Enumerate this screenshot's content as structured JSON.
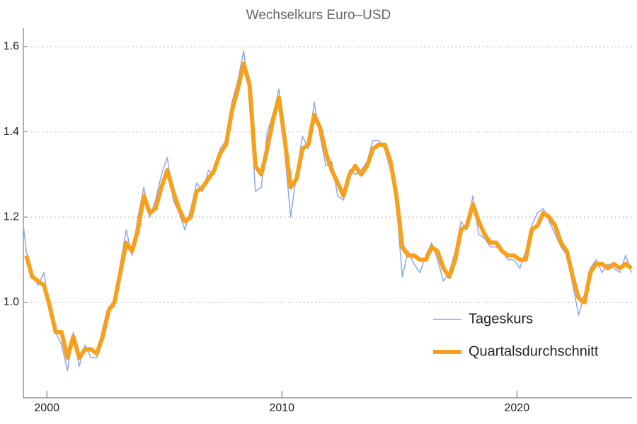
{
  "chart_data": {
    "type": "line",
    "title": "Wechselkurs Euro–USD",
    "xlim": [
      1999.0,
      2024.9
    ],
    "xticks": [
      2000,
      2010,
      2020
    ],
    "ylim": [
      0.776,
      1.643
    ],
    "yticks": [
      {
        "value": 1,
        "label": "1.0"
      },
      1.2,
      1.4,
      1.6
    ],
    "grid": true,
    "legend": "lower right",
    "series": [
      {
        "name": "Tageskurs",
        "color": "#8ea6ea",
        "x": [
          1999.0,
          1999.125,
          1999.375,
          1999.625,
          1999.875,
          2000.125,
          2000.375,
          2000.625,
          2000.875,
          2001.125,
          2001.375,
          2001.625,
          2001.875,
          2002.125,
          2002.375,
          2002.625,
          2002.875,
          2003.125,
          2003.375,
          2003.625,
          2003.875,
          2004.125,
          2004.375,
          2004.625,
          2004.875,
          2005.125,
          2005.375,
          2005.625,
          2005.875,
          2006.125,
          2006.375,
          2006.625,
          2006.875,
          2007.125,
          2007.375,
          2007.625,
          2007.875,
          2008.125,
          2008.375,
          2008.625,
          2008.875,
          2009.125,
          2009.375,
          2009.625,
          2009.875,
          2010.125,
          2010.375,
          2010.625,
          2010.875,
          2011.125,
          2011.375,
          2011.625,
          2011.875,
          2012.125,
          2012.375,
          2012.625,
          2012.875,
          2013.125,
          2013.375,
          2013.625,
          2013.875,
          2014.125,
          2014.375,
          2014.625,
          2014.875,
          2015.125,
          2015.375,
          2015.625,
          2015.875,
          2016.125,
          2016.375,
          2016.625,
          2016.875,
          2017.125,
          2017.375,
          2017.625,
          2017.875,
          2018.125,
          2018.375,
          2018.625,
          2018.875,
          2019.125,
          2019.375,
          2019.625,
          2019.875,
          2020.125,
          2020.375,
          2020.625,
          2020.875,
          2021.125,
          2021.375,
          2021.625,
          2021.875,
          2022.125,
          2022.375,
          2022.625,
          2022.875,
          2023.125,
          2023.375,
          2023.625,
          2023.875,
          2024.125,
          2024.375,
          2024.625,
          2024.875
        ],
        "values": [
          1.18,
          1.12,
          1.07,
          1.04,
          1.07,
          0.97,
          0.93,
          0.9,
          0.84,
          0.93,
          0.85,
          0.9,
          0.87,
          0.87,
          0.94,
          0.99,
          0.99,
          1.09,
          1.17,
          1.11,
          1.2,
          1.27,
          1.2,
          1.24,
          1.3,
          1.34,
          1.24,
          1.21,
          1.17,
          1.22,
          1.28,
          1.26,
          1.31,
          1.3,
          1.36,
          1.38,
          1.47,
          1.52,
          1.59,
          1.48,
          1.26,
          1.27,
          1.4,
          1.44,
          1.5,
          1.35,
          1.2,
          1.3,
          1.39,
          1.36,
          1.47,
          1.39,
          1.32,
          1.33,
          1.25,
          1.24,
          1.31,
          1.3,
          1.31,
          1.33,
          1.38,
          1.38,
          1.36,
          1.31,
          1.23,
          1.06,
          1.12,
          1.09,
          1.07,
          1.11,
          1.14,
          1.1,
          1.05,
          1.07,
          1.12,
          1.19,
          1.17,
          1.25,
          1.16,
          1.15,
          1.13,
          1.13,
          1.12,
          1.1,
          1.1,
          1.08,
          1.12,
          1.18,
          1.21,
          1.22,
          1.19,
          1.16,
          1.13,
          1.11,
          1.04,
          0.97,
          1.02,
          1.08,
          1.1,
          1.07,
          1.09,
          1.08,
          1.07,
          1.11,
          1.07
        ]
      },
      {
        "name": "Quartalsdurchschnitt",
        "color": "#f7a01e",
        "x": [
          1999.125,
          1999.375,
          1999.625,
          1999.875,
          2000.125,
          2000.375,
          2000.625,
          2000.875,
          2001.125,
          2001.375,
          2001.625,
          2001.875,
          2002.125,
          2002.375,
          2002.625,
          2002.875,
          2003.125,
          2003.375,
          2003.625,
          2003.875,
          2004.125,
          2004.375,
          2004.625,
          2004.875,
          2005.125,
          2005.375,
          2005.625,
          2005.875,
          2006.125,
          2006.375,
          2006.625,
          2006.875,
          2007.125,
          2007.375,
          2007.625,
          2007.875,
          2008.125,
          2008.375,
          2008.625,
          2008.875,
          2009.125,
          2009.375,
          2009.625,
          2009.875,
          2010.125,
          2010.375,
          2010.625,
          2010.875,
          2011.125,
          2011.375,
          2011.625,
          2011.875,
          2012.125,
          2012.375,
          2012.625,
          2012.875,
          2013.125,
          2013.375,
          2013.625,
          2013.875,
          2014.125,
          2014.375,
          2014.625,
          2014.875,
          2015.125,
          2015.375,
          2015.625,
          2015.875,
          2016.125,
          2016.375,
          2016.625,
          2016.875,
          2017.125,
          2017.375,
          2017.625,
          2017.875,
          2018.125,
          2018.375,
          2018.625,
          2018.875,
          2019.125,
          2019.375,
          2019.625,
          2019.875,
          2020.125,
          2020.375,
          2020.625,
          2020.875,
          2021.125,
          2021.375,
          2021.625,
          2021.875,
          2022.125,
          2022.375,
          2022.625,
          2022.875,
          2023.125,
          2023.375,
          2023.625,
          2023.875,
          2024.125,
          2024.375,
          2024.625,
          2024.875
        ],
        "values": [
          1.11,
          1.06,
          1.05,
          1.04,
          0.99,
          0.93,
          0.93,
          0.87,
          0.92,
          0.87,
          0.89,
          0.89,
          0.88,
          0.92,
          0.98,
          1.0,
          1.07,
          1.14,
          1.12,
          1.17,
          1.25,
          1.21,
          1.22,
          1.27,
          1.31,
          1.26,
          1.22,
          1.19,
          1.2,
          1.26,
          1.27,
          1.29,
          1.31,
          1.35,
          1.37,
          1.45,
          1.5,
          1.56,
          1.51,
          1.32,
          1.3,
          1.36,
          1.43,
          1.48,
          1.38,
          1.27,
          1.29,
          1.36,
          1.37,
          1.44,
          1.41,
          1.35,
          1.31,
          1.28,
          1.25,
          1.3,
          1.32,
          1.3,
          1.32,
          1.36,
          1.37,
          1.37,
          1.33,
          1.25,
          1.13,
          1.11,
          1.11,
          1.1,
          1.1,
          1.13,
          1.12,
          1.08,
          1.06,
          1.1,
          1.17,
          1.18,
          1.23,
          1.19,
          1.16,
          1.14,
          1.14,
          1.12,
          1.11,
          1.11,
          1.1,
          1.1,
          1.17,
          1.18,
          1.21,
          1.2,
          1.18,
          1.14,
          1.12,
          1.06,
          1.01,
          1.0,
          1.07,
          1.09,
          1.09,
          1.08,
          1.09,
          1.08,
          1.09,
          1.08
        ]
      }
    ]
  }
}
